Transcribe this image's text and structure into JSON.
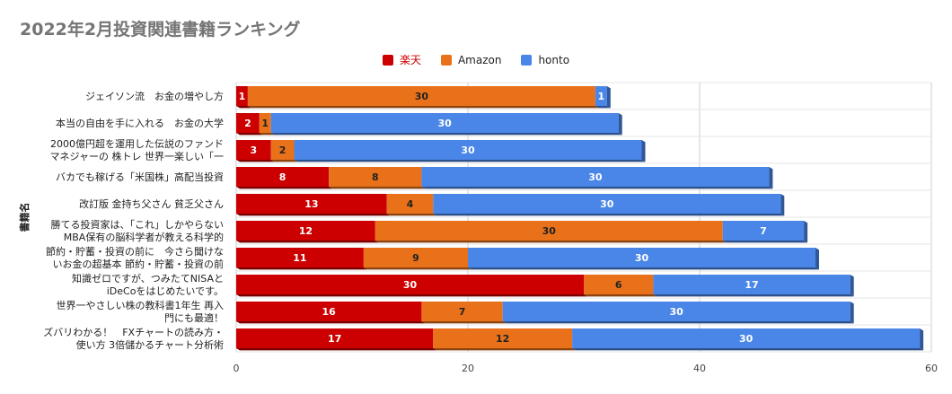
{
  "chart_data": {
    "type": "bar",
    "orientation": "horizontal",
    "stacked": true,
    "title": "2022年2月投資関連書籍ランキング",
    "ylabel": "書籍名",
    "xlabel": "",
    "xlim": [
      0,
      60
    ],
    "xticks": [
      0,
      20,
      40,
      60
    ],
    "grid": true,
    "legend_position": "top",
    "categories": [
      [
        "ジェイソン流　お金の増やし方"
      ],
      [
        "本当の自由を手に入れる　お金の大学"
      ],
      [
        "2000億円超を運用した伝説のファンド",
        "マネジャーの 株トレ 世界一楽しい「一"
      ],
      [
        "バカでも稼げる「米国株」高配当投資"
      ],
      [
        "改訂版 金持ち父さん 貧乏父さん"
      ],
      [
        "勝てる投資家は、「これ」しかやらない",
        "MBA保有の脳科学者が教える科学的"
      ],
      [
        "節約・貯蓄・投資の前に　今さら聞けな",
        "いお金の超基本 節約・貯蓄・投資の前"
      ],
      [
        "知識ゼロですが、つみたてNISAと",
        "iDeCoをはじめたいです。"
      ],
      [
        "世界一やさしい株の教科書1年生 再入",
        "門にも最適！"
      ],
      [
        "ズバリわかる！　FXチャートの読み方・",
        "使い方 3倍儲かるチャート分析術"
      ]
    ],
    "series": [
      {
        "name": "楽天",
        "color": "#cc0000",
        "values": [
          1,
          2,
          3,
          8,
          13,
          12,
          11,
          30,
          16,
          17
        ]
      },
      {
        "name": "Amazon",
        "color": "#e8711a",
        "values": [
          30,
          1,
          2,
          8,
          4,
          30,
          9,
          6,
          7,
          12
        ]
      },
      {
        "name": "honto",
        "color": "#4a86e8",
        "values": [
          1,
          30,
          30,
          30,
          30,
          7,
          30,
          17,
          30,
          30
        ]
      }
    ]
  }
}
